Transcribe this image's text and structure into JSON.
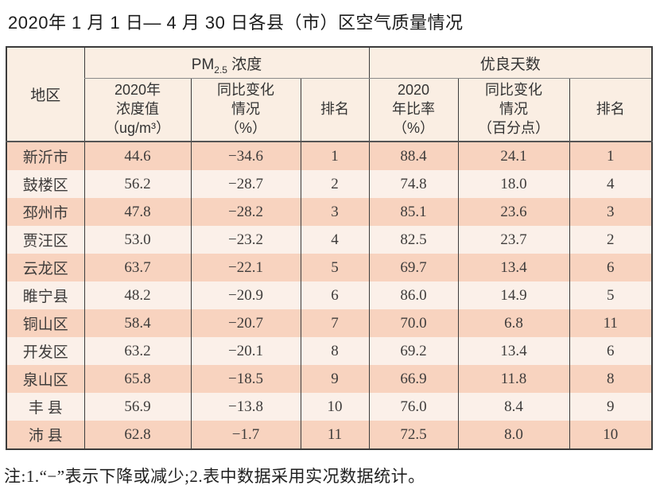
{
  "page_title": "2020年 1 月 1 日— 4 月 30 日各县（市）区空气质量情况",
  "table": {
    "region_header": "地区",
    "pm_group": {
      "pre": "PM",
      "sub": "2.5",
      "post": " 浓度"
    },
    "good_days_header": "优良天数",
    "sub_headers": {
      "conc": "2020年\n浓度值\n（ug/m³）",
      "chg_pct": "同比变化\n情况\n（%）",
      "rank_pm": "排名",
      "ratio": "2020\n年比率\n（%）",
      "chg_pts": "同比变化\n情况\n（百分点）",
      "rank_days": "排名"
    },
    "rows": [
      {
        "region": "新沂市",
        "conc": "44.6",
        "chg_pct": "−34.6",
        "rank_pm": "1",
        "ratio": "88.4",
        "chg_pts": "24.1",
        "rank_days": "1"
      },
      {
        "region": "鼓楼区",
        "conc": "56.2",
        "chg_pct": "−28.7",
        "rank_pm": "2",
        "ratio": "74.8",
        "chg_pts": "18.0",
        "rank_days": "4"
      },
      {
        "region": "邳州市",
        "conc": "47.8",
        "chg_pct": "−28.2",
        "rank_pm": "3",
        "ratio": "85.1",
        "chg_pts": "23.6",
        "rank_days": "3"
      },
      {
        "region": "贾汪区",
        "conc": "53.0",
        "chg_pct": "−23.2",
        "rank_pm": "4",
        "ratio": "82.5",
        "chg_pts": "23.7",
        "rank_days": "2"
      },
      {
        "region": "云龙区",
        "conc": "63.7",
        "chg_pct": "−22.1",
        "rank_pm": "5",
        "ratio": "69.7",
        "chg_pts": "13.4",
        "rank_days": "6"
      },
      {
        "region": "睢宁县",
        "conc": "48.2",
        "chg_pct": "−20.9",
        "rank_pm": "6",
        "ratio": "86.0",
        "chg_pts": "14.9",
        "rank_days": "5"
      },
      {
        "region": "铜山区",
        "conc": "58.4",
        "chg_pct": "−20.7",
        "rank_pm": "7",
        "ratio": "70.0",
        "chg_pts": "6.8",
        "rank_days": "11"
      },
      {
        "region": "开发区",
        "conc": "63.2",
        "chg_pct": "−20.1",
        "rank_pm": "8",
        "ratio": "69.2",
        "chg_pts": "13.4",
        "rank_days": "6"
      },
      {
        "region": "泉山区",
        "conc": "65.8",
        "chg_pct": "−18.5",
        "rank_pm": "9",
        "ratio": "66.9",
        "chg_pts": "11.8",
        "rank_days": "8"
      },
      {
        "region": "丰 县",
        "conc": "56.9",
        "chg_pct": "−13.8",
        "rank_pm": "10",
        "ratio": "76.0",
        "chg_pts": "8.4",
        "rank_days": "9"
      },
      {
        "region": "沛 县",
        "conc": "62.8",
        "chg_pct": "−1.7",
        "rank_pm": "11",
        "ratio": "72.5",
        "chg_pts": "8.0",
        "rank_days": "10"
      }
    ]
  },
  "footnote": "注:1.“−”表示下降或减少;2.表中数据采用实况数据统计。",
  "colors": {
    "row_odd": "#f8d3bf",
    "row_even": "#fbf0e9",
    "header_bg": "#faeee3",
    "border": "#3c3c3c"
  },
  "chart_data": {
    "type": "table",
    "title": "2020年 1 月 1 日— 4 月 30 日各县（市）区空气质量情况",
    "column_groups": [
      "地区",
      "PM2.5 浓度",
      "优良天数"
    ],
    "columns": [
      "地区",
      "PM2.5 2020年浓度值（ug/m³）",
      "PM2.5 同比变化情况（%）",
      "PM2.5 排名",
      "优良天数 2020年比率（%）",
      "优良天数 同比变化情况（百分点）",
      "优良天数 排名"
    ],
    "rows": [
      [
        "新沂市",
        44.6,
        -34.6,
        1,
        88.4,
        24.1,
        1
      ],
      [
        "鼓楼区",
        56.2,
        -28.7,
        2,
        74.8,
        18.0,
        4
      ],
      [
        "邳州市",
        47.8,
        -28.2,
        3,
        85.1,
        23.6,
        3
      ],
      [
        "贾汪区",
        53.0,
        -23.2,
        4,
        82.5,
        23.7,
        2
      ],
      [
        "云龙区",
        63.7,
        -22.1,
        5,
        69.7,
        13.4,
        6
      ],
      [
        "睢宁县",
        48.2,
        -20.9,
        6,
        86.0,
        14.9,
        5
      ],
      [
        "铜山区",
        58.4,
        -20.7,
        7,
        70.0,
        6.8,
        11
      ],
      [
        "开发区",
        63.2,
        -20.1,
        8,
        69.2,
        13.4,
        6
      ],
      [
        "泉山区",
        65.8,
        -18.5,
        9,
        66.9,
        11.8,
        8
      ],
      [
        "丰 县",
        56.9,
        -13.8,
        10,
        76.0,
        8.4,
        9
      ],
      [
        "沛 县",
        62.8,
        -1.7,
        11,
        72.5,
        8.0,
        10
      ]
    ],
    "note": "注:1.“−”表示下降或减少;2.表中数据采用实况数据统计。"
  }
}
